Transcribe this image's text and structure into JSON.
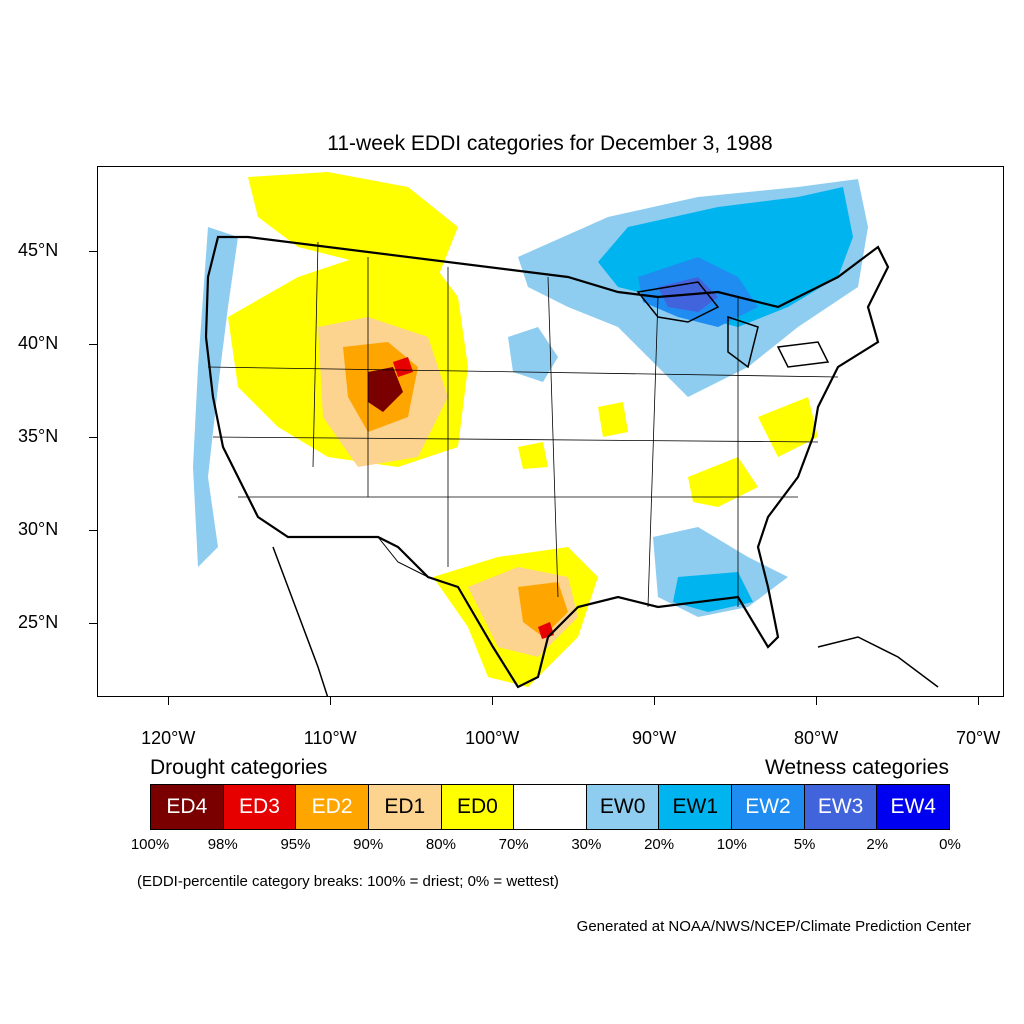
{
  "title": "11-week EDDI categories for December 3, 1988",
  "map": {
    "lon_min": -124.4,
    "lon_max": -68.4,
    "lat_min": 21,
    "lat_max": 49.6,
    "lat_ticks": [
      {
        "value": 45,
        "label": "45°N"
      },
      {
        "value": 40,
        "label": "40°N"
      },
      {
        "value": 35,
        "label": "35°N"
      },
      {
        "value": 30,
        "label": "30°N"
      },
      {
        "value": 25,
        "label": "25°N"
      }
    ],
    "lon_ticks": [
      {
        "value": -120,
        "label": "120°W"
      },
      {
        "value": -110,
        "label": "110°W"
      },
      {
        "value": -100,
        "label": "100°W"
      },
      {
        "value": -90,
        "label": "90°W"
      },
      {
        "value": -80,
        "label": "80°W"
      },
      {
        "value": -70,
        "label": "70°W"
      }
    ]
  },
  "legend": {
    "drought_heading": "Drought categories",
    "wetness_heading": "Wetness categories",
    "categories": [
      {
        "label": "ED4",
        "color": "#7a0000",
        "text_color": "#ffffff"
      },
      {
        "label": "ED3",
        "color": "#e60000",
        "text_color": "#ffffff"
      },
      {
        "label": "ED2",
        "color": "#ffa500",
        "text_color": "#ffffff"
      },
      {
        "label": "ED1",
        "color": "#fcd38f",
        "text_color": "#000000"
      },
      {
        "label": "ED0",
        "color": "#ffff00",
        "text_color": "#000000"
      },
      {
        "label": "",
        "color": "#ffffff",
        "text_color": "#000000"
      },
      {
        "label": "EW0",
        "color": "#8ecdf0",
        "text_color": "#000000"
      },
      {
        "label": "EW1",
        "color": "#00b4f0",
        "text_color": "#000000"
      },
      {
        "label": "EW2",
        "color": "#1e8cf0",
        "text_color": "#ffffff"
      },
      {
        "label": "EW3",
        "color": "#4164dc",
        "text_color": "#ffffff"
      },
      {
        "label": "EW4",
        "color": "#0000f0",
        "text_color": "#ffffff"
      }
    ],
    "breaks": [
      "100%",
      "98%",
      "95%",
      "90%",
      "80%",
      "70%",
      "30%",
      "20%",
      "10%",
      "5%",
      "2%",
      "0%"
    ]
  },
  "note": "(EDDI-percentile category breaks: 100% = driest; 0% = wettest)",
  "credit": "Generated at NOAA/NWS/NCEP/Climate Prediction Center"
}
